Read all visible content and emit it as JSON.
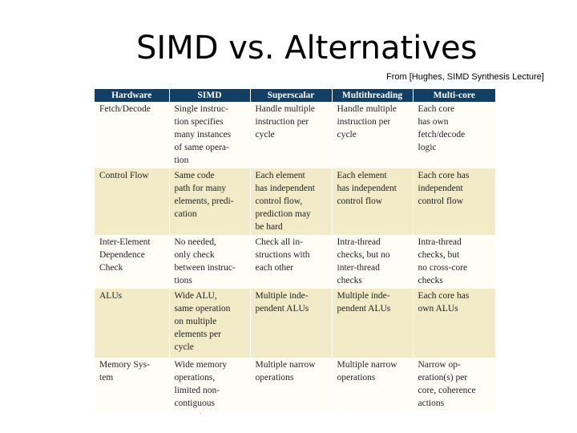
{
  "slide": {
    "title": "SIMD vs. Alternatives",
    "source": "From [Hughes, SIMD Synthesis Lecture]"
  },
  "table": {
    "headers": [
      "Hardware",
      "SIMD",
      "Superscalar",
      "Multithreading",
      "Multi-core"
    ],
    "rows": [
      [
        "Fetch/Decode",
        "Single instruc-\ntion specifies\nmany instances\nof same opera-\ntion",
        "Handle multiple\ninstruction per\ncycle",
        "Handle multiple\ninstruction per\ncycle",
        "Each core\nhas own\nfetch/decode\nlogic"
      ],
      [
        "Control Flow",
        "Same code\npath for many\nelements, predi-\ncation",
        "Each element\nhas independent\ncontrol flow,\nprediction may\nbe hard",
        "Each element\nhas independent\ncontrol flow",
        "Each core has\nindependent\ncontrol flow"
      ],
      [
        "Inter-Element\nDependence\nCheck",
        "No needed,\nonly check\nbetween instruc-\ntions",
        "Check all in-\nstructions with\neach other",
        "Intra-thread\nchecks, but no\ninter-thread\nchecks",
        "Intra-thread\nchecks, but\nno cross-core\nchecks"
      ],
      [
        "ALUs",
        "Wide ALU,\nsame operation\non multiple\nelements per\ncycle",
        "Multiple inde-\npendent ALUs",
        "Multiple inde-\npendent ALUs",
        "Each core has\nown ALUs"
      ],
      [
        "Memory Sys-\ntem",
        "Wide memory\noperations,\nlimited non-\ncontiguous\nsupport",
        "Multiple narrow\noperations",
        "Multiple narrow\noperations",
        "Narrow op-\neration(s) per\ncore, coherence\nactions"
      ]
    ]
  },
  "colors": {
    "header_bg": "#123f63",
    "row_plain": "#fffdf6",
    "row_shade": "#f2ebc7"
  }
}
